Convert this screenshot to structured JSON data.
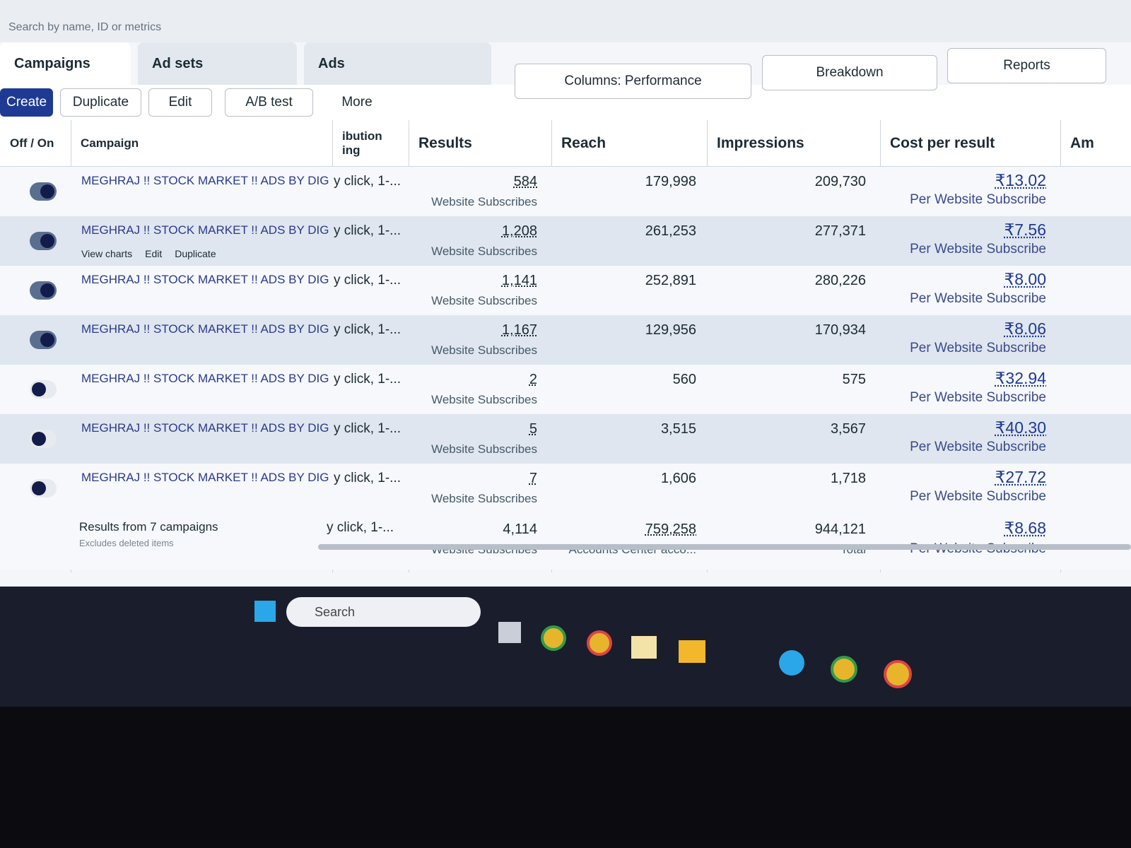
{
  "search_placeholder": "Search by name, ID or metrics",
  "tabs": [
    "Campaigns",
    "Ad sets",
    "Ads"
  ],
  "toolbar": {
    "create": "Create",
    "duplicate": "Duplicate",
    "edit": "Edit",
    "ab_test": "A/B test",
    "more": "More",
    "columns": "Columns: Performance",
    "breakdown": "Breakdown",
    "reports": "Reports"
  },
  "table": {
    "headers": [
      "Off / On",
      "Campaign",
      "ibution ing",
      "Results",
      "Reach",
      "Impressions",
      "Cost per result",
      "Am"
    ],
    "hover_actions": [
      "View charts",
      "Edit",
      "Duplicate"
    ],
    "rows": [
      {
        "on": true,
        "campaign": "MEGHRAJ !! STOCK MARKET !! ADS BY DIGI RA...",
        "attribution": "y click, 1-...",
        "results": "584",
        "results_label": "Website Subscribes",
        "reach": "179,998",
        "impressions": "209,730",
        "cost": "₹13.02",
        "cost_label": "Per Website Subscribe"
      },
      {
        "on": true,
        "campaign": "MEGHRAJ !! STOCK MARKET !! ADS BY DIGI ...",
        "attribution": "y click, 1-...",
        "results": "1,208",
        "results_label": "Website Subscribes",
        "reach": "261,253",
        "impressions": "277,371",
        "cost": "₹7.56",
        "cost_label": "Per Website Subscribe"
      },
      {
        "on": true,
        "campaign": "MEGHRAJ !! STOCK MARKET !! ADS BY DIGI RA...",
        "attribution": "y click, 1-...",
        "results": "1,141",
        "results_label": "Website Subscribes",
        "reach": "252,891",
        "impressions": "280,226",
        "cost": "₹8.00",
        "cost_label": "Per Website Subscribe"
      },
      {
        "on": true,
        "campaign": "MEGHRAJ !! STOCK MARKET !! ADS BY DIGI RA...",
        "attribution": "y click, 1-...",
        "results": "1,167",
        "results_label": "Website Subscribes",
        "reach": "129,956",
        "impressions": "170,934",
        "cost": "₹8.06",
        "cost_label": "Per Website Subscribe"
      },
      {
        "on": false,
        "campaign": "MEGHRAJ !! STOCK MARKET !! ADS BY DIGI RA...",
        "attribution": "y click, 1-...",
        "results": "2",
        "results_label": "Website Subscribes",
        "reach": "560",
        "impressions": "575",
        "cost": "₹32.94",
        "cost_label": "Per Website Subscribe"
      },
      {
        "on": false,
        "campaign": "MEGHRAJ !! STOCK MARKET !! ADS BY DIGI RA...",
        "attribution": "y click, 1-...",
        "results": "5",
        "results_label": "Website Subscribes",
        "reach": "3,515",
        "impressions": "3,567",
        "cost": "₹40.30",
        "cost_label": "Per Website Subscribe"
      },
      {
        "on": false,
        "campaign": "MEGHRAJ !! STOCK MARKET !! ADS BY DIGI RA...",
        "attribution": "y click, 1-...",
        "results": "7",
        "results_label": "Website Subscribes",
        "reach": "1,606",
        "impressions": "1,718",
        "cost": "₹27.72",
        "cost_label": "Per Website Subscribe"
      }
    ],
    "summary": {
      "campaign": "Results from 7 campaigns",
      "note": "Excludes deleted items",
      "attribution": "y click, 1-...",
      "results": "4,114",
      "results_label": "Website Subscribes",
      "reach": "759,258",
      "reach_label": "Accounts Center acco...",
      "impressions": "944,121",
      "impressions_label": "Total",
      "cost": "₹8.68",
      "cost_label": "Per Website Subscribe"
    }
  },
  "taskbar": {
    "search": "Search"
  }
}
